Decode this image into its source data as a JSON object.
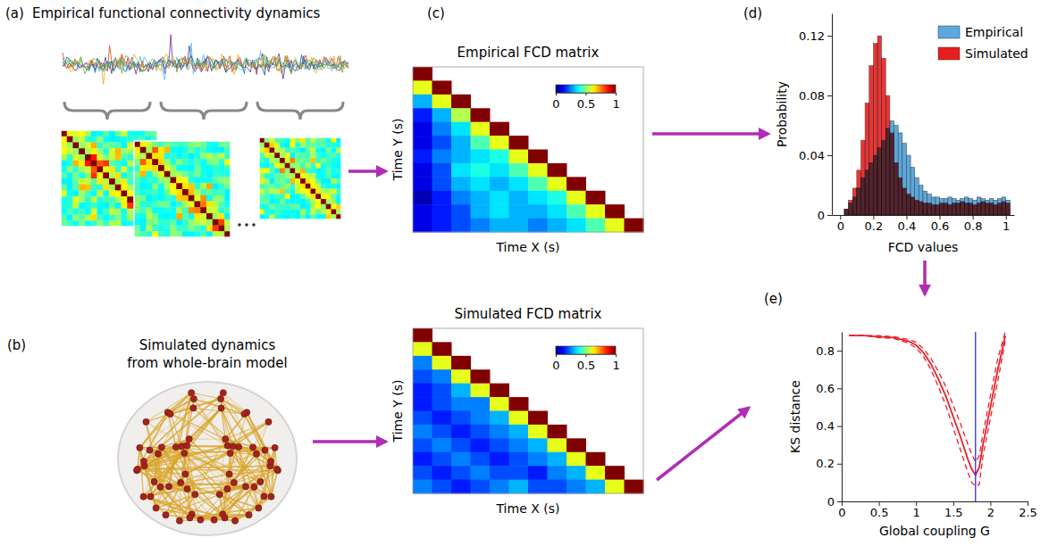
{
  "panels": {
    "a": {
      "label": "(a)",
      "title": "Empirical functional connectivity dynamics"
    },
    "b": {
      "label": "(b)",
      "title_lines": [
        "Simulated dynamics",
        "from whole-brain model"
      ]
    },
    "c": {
      "label": "(c)",
      "empirical": {
        "title": "Empirical FCD matrix",
        "x_label": "Time X (s)",
        "y_label": "Time Y (s)",
        "colorbar": {
          "range": [
            0,
            1
          ],
          "ticks": [
            0,
            0.5,
            1
          ]
        },
        "cells": [
          [
            1
          ],
          [
            0.6,
            1
          ],
          [
            0.3,
            0.6,
            1
          ],
          [
            0.15,
            0.3,
            0.55,
            1
          ],
          [
            0.1,
            0.25,
            0.35,
            0.6,
            1
          ],
          [
            0.1,
            0.2,
            0.3,
            0.45,
            0.6,
            1
          ],
          [
            0.15,
            0.25,
            0.3,
            0.35,
            0.4,
            0.6,
            1
          ],
          [
            0.1,
            0.2,
            0.35,
            0.4,
            0.35,
            0.45,
            0.6,
            1
          ],
          [
            0.1,
            0.2,
            0.3,
            0.35,
            0.3,
            0.35,
            0.45,
            0.6,
            1
          ],
          [
            0.05,
            0.15,
            0.25,
            0.3,
            0.35,
            0.3,
            0.35,
            0.4,
            0.6,
            1
          ],
          [
            0.1,
            0.15,
            0.2,
            0.3,
            0.35,
            0.3,
            0.3,
            0.35,
            0.45,
            0.6,
            1
          ],
          [
            0.1,
            0.15,
            0.2,
            0.25,
            0.3,
            0.3,
            0.25,
            0.3,
            0.35,
            0.45,
            0.6,
            1
          ]
        ]
      },
      "simulated": {
        "title": "Simulated FCD matrix",
        "x_label": "Time X (s)",
        "y_label": "Time Y (s)",
        "colorbar": {
          "range": [
            0,
            1
          ],
          "ticks": [
            0,
            0.5,
            1
          ]
        },
        "cells": [
          [
            1
          ],
          [
            0.6,
            1
          ],
          [
            0.25,
            0.6,
            1
          ],
          [
            0.2,
            0.25,
            0.6,
            1
          ],
          [
            0.15,
            0.2,
            0.3,
            0.6,
            1
          ],
          [
            0.15,
            0.2,
            0.25,
            0.25,
            0.6,
            1
          ],
          [
            0.2,
            0.15,
            0.2,
            0.25,
            0.3,
            0.6,
            1
          ],
          [
            0.25,
            0.2,
            0.15,
            0.2,
            0.25,
            0.3,
            0.6,
            1
          ],
          [
            0.2,
            0.25,
            0.2,
            0.15,
            0.2,
            0.25,
            0.3,
            0.6,
            1
          ],
          [
            0.15,
            0.2,
            0.25,
            0.2,
            0.15,
            0.2,
            0.25,
            0.3,
            0.6,
            1
          ],
          [
            0.2,
            0.15,
            0.2,
            0.25,
            0.2,
            0.2,
            0.15,
            0.25,
            0.3,
            0.6,
            1
          ],
          [
            0.25,
            0.2,
            0.15,
            0.2,
            0.25,
            0.3,
            0.2,
            0.2,
            0.25,
            0.3,
            0.6,
            1
          ]
        ]
      }
    },
    "d": {
      "label": "(d)"
    },
    "e": {
      "label": "(e)"
    }
  },
  "chart_data": [
    {
      "type": "histogram",
      "x_label": "FCD values",
      "y_label": "Probability",
      "bins": [
        0.025,
        0.05,
        0.075,
        0.1,
        0.125,
        0.15,
        0.175,
        0.2,
        0.225,
        0.25,
        0.275,
        0.3,
        0.325,
        0.35,
        0.375,
        0.4,
        0.425,
        0.45,
        0.475,
        0.5,
        0.525,
        0.55,
        0.575,
        0.6,
        0.625,
        0.65,
        0.675,
        0.7,
        0.725,
        0.75,
        0.775,
        0.8,
        0.825,
        0.85,
        0.875,
        0.9,
        0.925,
        0.95,
        0.975,
        1,
        1.025
      ],
      "series": [
        {
          "name": "Empirical",
          "color": "#5ba8dc",
          "values": [
            0.004,
            0.008,
            0.012,
            0.018,
            0.025,
            0.03,
            0.035,
            0.04,
            0.045,
            0.05,
            0.058,
            0.063,
            0.06,
            0.055,
            0.048,
            0.04,
            0.032,
            0.025,
            0.02,
            0.016,
            0.014,
            0.012,
            0.012,
            0.011,
            0.011,
            0.012,
            0.011,
            0.01,
            0.011,
            0.012,
            0.011,
            0.01,
            0.012,
            0.011,
            0.01,
            0.011,
            0.01,
            0.011,
            0.012,
            0.01
          ]
        },
        {
          "name": "Simulated",
          "color": "#e81e1e",
          "values": [
            0.004,
            0.01,
            0.018,
            0.03,
            0.05,
            0.075,
            0.1,
            0.115,
            0.12,
            0.105,
            0.08,
            0.055,
            0.035,
            0.025,
            0.018,
            0.014,
            0.012,
            0.01,
            0.009,
            0.008,
            0.008,
            0.007,
            0.007,
            0.008,
            0.008,
            0.007,
            0.008,
            0.008,
            0.009,
            0.008,
            0.008,
            0.007,
            0.008,
            0.009,
            0.008,
            0.008,
            0.007,
            0.008,
            0.009,
            0.008
          ]
        }
      ],
      "xlim": [
        -0.05,
        1.05
      ],
      "xticks": [
        0,
        0.2,
        0.4,
        0.6,
        0.8,
        1
      ],
      "ylim": [
        0,
        0.135
      ],
      "yticks": [
        0,
        0.04,
        0.08,
        0.12
      ],
      "legend": "upper right"
    },
    {
      "type": "line",
      "x_label": "Global coupling G",
      "y_label": "KS distance",
      "x": [
        0.1,
        0.3,
        0.5,
        0.7,
        0.9,
        1.0,
        1.1,
        1.2,
        1.3,
        1.4,
        1.5,
        1.6,
        1.7,
        1.75,
        1.8,
        1.85,
        1.9,
        2.0,
        2.1,
        2.2
      ],
      "series": [
        {
          "color": "#e8202a",
          "line_style": "solid",
          "values": [
            0.88,
            0.88,
            0.875,
            0.87,
            0.85,
            0.83,
            0.79,
            0.73,
            0.65,
            0.56,
            0.45,
            0.34,
            0.22,
            0.17,
            0.14,
            0.18,
            0.3,
            0.5,
            0.7,
            0.88
          ]
        },
        {
          "color": "#e8202a",
          "line_style": "dashed",
          "values": [
            0.88,
            0.88,
            0.88,
            0.875,
            0.86,
            0.845,
            0.81,
            0.76,
            0.69,
            0.61,
            0.51,
            0.41,
            0.3,
            0.25,
            0.21,
            0.24,
            0.36,
            0.56,
            0.76,
            0.9
          ]
        },
        {
          "color": "#e8202a",
          "line_style": "dashed",
          "values": [
            0.88,
            0.88,
            0.87,
            0.865,
            0.84,
            0.815,
            0.77,
            0.7,
            0.61,
            0.51,
            0.39,
            0.27,
            0.15,
            0.1,
            0.08,
            0.09,
            0.24,
            0.44,
            0.64,
            0.85
          ]
        }
      ],
      "reference_line": {
        "x": 1.8,
        "color": "#2c2cff"
      },
      "xlim": [
        0,
        2.5
      ],
      "xticks": [
        0,
        0.5,
        1,
        1.5,
        2,
        2.5
      ],
      "ylim": [
        0,
        0.9
      ],
      "yticks": [
        0,
        0.2,
        0.4,
        0.6,
        0.8
      ]
    }
  ]
}
